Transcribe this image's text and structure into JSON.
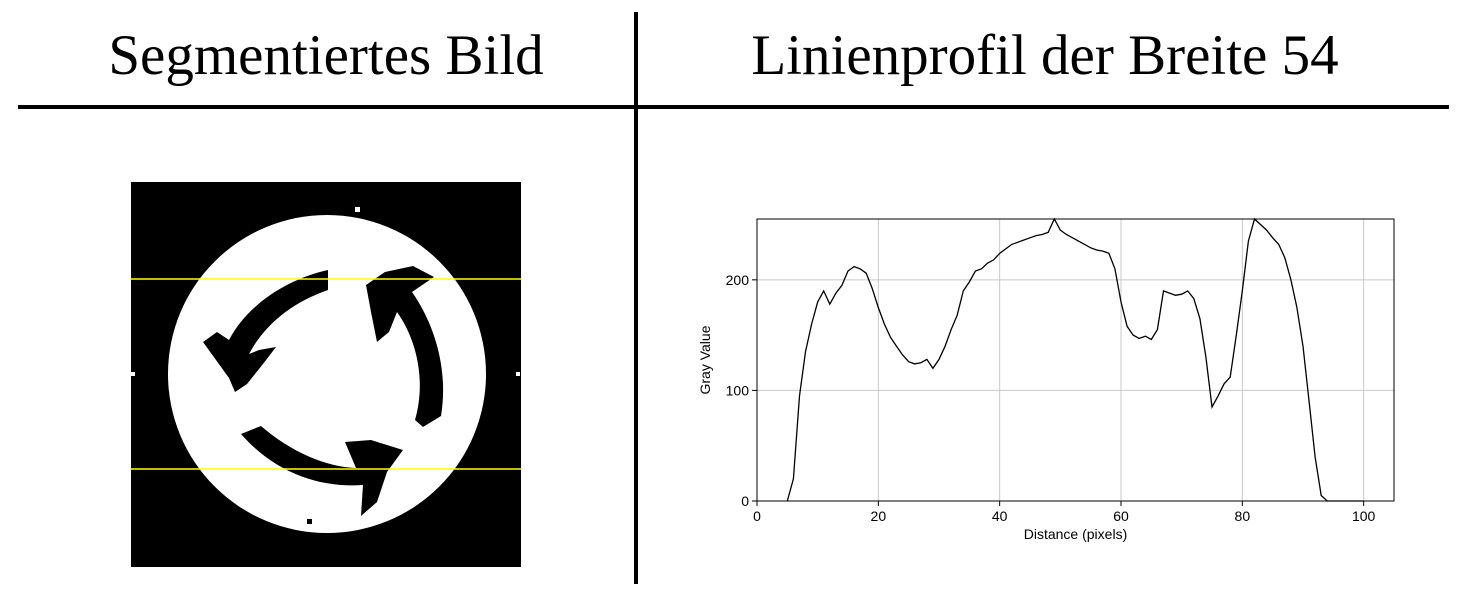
{
  "header": {
    "left_title": "Segmentiertes Bild",
    "right_title": "Linienprofil der Breite 54"
  },
  "colors": {
    "background": "#ffffff",
    "rule": "#000000",
    "sign_black": "#000000",
    "sign_white": "#ffffff",
    "yellow_line": "#ffff00",
    "grid": "#c8c8c8",
    "profile_line": "#000000"
  },
  "chart_data": {
    "type": "line",
    "title": "",
    "xlabel": "Distance (pixels)",
    "ylabel": "Gray Value",
    "xlim": [
      0,
      105
    ],
    "ylim": [
      0,
      255
    ],
    "xticks": [
      0,
      20,
      40,
      60,
      80,
      100
    ],
    "yticks": [
      0,
      100,
      200
    ],
    "grid": true,
    "legend": "none",
    "series": [
      {
        "x": [
          5,
          6,
          7,
          8,
          9,
          10,
          11,
          12,
          13,
          14,
          15,
          16,
          17,
          18,
          19,
          20,
          21,
          22,
          23,
          24,
          25,
          26,
          27,
          28,
          29,
          30,
          31,
          32,
          33,
          34,
          35,
          36,
          37,
          38,
          39,
          40,
          41,
          42,
          43,
          44,
          45,
          46,
          47,
          48,
          49,
          50,
          51,
          52,
          53,
          54,
          55,
          56,
          57,
          58,
          59,
          60,
          61,
          62,
          63,
          64,
          65,
          66,
          67,
          68,
          69,
          70,
          71,
          72,
          73,
          74,
          75,
          76,
          77,
          78,
          79,
          80,
          81,
          82,
          83,
          84,
          85,
          86,
          87,
          88,
          89,
          90,
          91,
          92,
          93,
          94,
          95,
          96,
          97,
          98,
          99,
          100
        ],
        "y": [
          0,
          20,
          95,
          135,
          160,
          180,
          190,
          178,
          188,
          195,
          208,
          212,
          210,
          206,
          192,
          175,
          160,
          148,
          140,
          132,
          126,
          124,
          125,
          128,
          120,
          128,
          140,
          155,
          168,
          190,
          198,
          208,
          210,
          215,
          218,
          224,
          228,
          232,
          234,
          236,
          238,
          240,
          241,
          243,
          255,
          245,
          241,
          238,
          235,
          232,
          229,
          227,
          226,
          224,
          210,
          180,
          158,
          150,
          147,
          149,
          146,
          155,
          190,
          188,
          186,
          187,
          190,
          183,
          165,
          130,
          85,
          95,
          106,
          112,
          150,
          190,
          235,
          255,
          250,
          245,
          238,
          232,
          220,
          200,
          175,
          140,
          90,
          40,
          5,
          0,
          0,
          0,
          0,
          0,
          0,
          0
        ]
      }
    ]
  },
  "segmented_image": {
    "alt": "segmented roundabout sign"
  }
}
